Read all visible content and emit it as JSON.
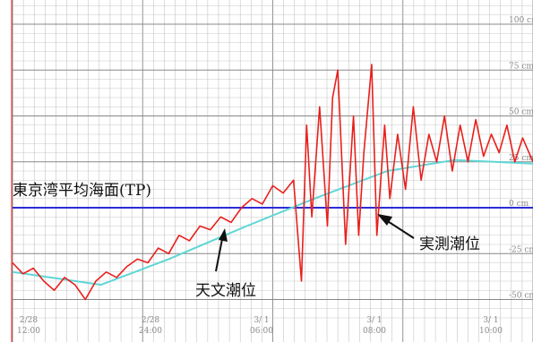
{
  "chart_data": {
    "type": "line",
    "title": "",
    "xlabel": "",
    "ylabel": "",
    "ylim": [
      -60,
      110
    ],
    "y_ticks": [
      {
        "value": 100,
        "label": "100 cm"
      },
      {
        "value": 75,
        "label": "75 cm"
      },
      {
        "value": 50,
        "label": "50 cm"
      },
      {
        "value": 25,
        "label": "25 cm"
      },
      {
        "value": 0,
        "label": "0 cm"
      },
      {
        "value": -25,
        "label": "-25 cm"
      },
      {
        "value": -50,
        "label": "-50 cm"
      }
    ],
    "x_ticks": [
      {
        "day": "2/28",
        "time": "12:00"
      },
      {
        "day": "2/28",
        "time": "24:00"
      },
      {
        "day": "3/ 1",
        "time": "06:00"
      },
      {
        "day": "3/ 1",
        "time": "08:00"
      },
      {
        "day": "3/ 1",
        "time": "10:00"
      }
    ],
    "grid": true,
    "reference_line": {
      "label": "東京湾平均海面(TP)",
      "value": 0,
      "color": "#2b2bd8"
    },
    "series": [
      {
        "name": "天文潮位",
        "color": "#5fd6d6",
        "x": [
          0.0,
          0.17,
          0.3,
          0.45,
          0.58,
          0.72,
          0.85,
          1.0
        ],
        "y": [
          -35,
          -42,
          -28,
          -10,
          5,
          20,
          26,
          24
        ]
      },
      {
        "name": "実測潮位",
        "color": "#e8201c",
        "x": [
          0.0,
          0.02,
          0.04,
          0.06,
          0.08,
          0.1,
          0.12,
          0.14,
          0.16,
          0.18,
          0.2,
          0.22,
          0.24,
          0.26,
          0.28,
          0.3,
          0.32,
          0.34,
          0.36,
          0.38,
          0.4,
          0.42,
          0.44,
          0.46,
          0.48,
          0.5,
          0.52,
          0.54,
          0.555,
          0.565,
          0.575,
          0.59,
          0.605,
          0.615,
          0.625,
          0.64,
          0.655,
          0.665,
          0.675,
          0.69,
          0.7,
          0.715,
          0.725,
          0.74,
          0.755,
          0.77,
          0.785,
          0.8,
          0.815,
          0.83,
          0.845,
          0.86,
          0.875,
          0.89,
          0.905,
          0.92,
          0.935,
          0.95,
          0.965,
          0.98,
          1.0
        ],
        "y": [
          -30,
          -36,
          -33,
          -40,
          -45,
          -38,
          -42,
          -50,
          -40,
          -35,
          -38,
          -32,
          -28,
          -30,
          -22,
          -25,
          -15,
          -18,
          -10,
          -12,
          -5,
          -8,
          0,
          5,
          2,
          12,
          8,
          15,
          -40,
          45,
          -5,
          55,
          -10,
          60,
          75,
          -20,
          50,
          -15,
          30,
          78,
          -15,
          45,
          5,
          40,
          10,
          55,
          15,
          40,
          25,
          50,
          20,
          45,
          25,
          48,
          28,
          40,
          30,
          45,
          25,
          38,
          25
        ]
      }
    ],
    "annotations": [
      {
        "text": "東京湾平均海面(TP)",
        "target": "reference_line"
      },
      {
        "text": "天文潮位",
        "target": "astronomical_tide"
      },
      {
        "text": "実測潮位",
        "target": "observed_tide"
      }
    ]
  }
}
